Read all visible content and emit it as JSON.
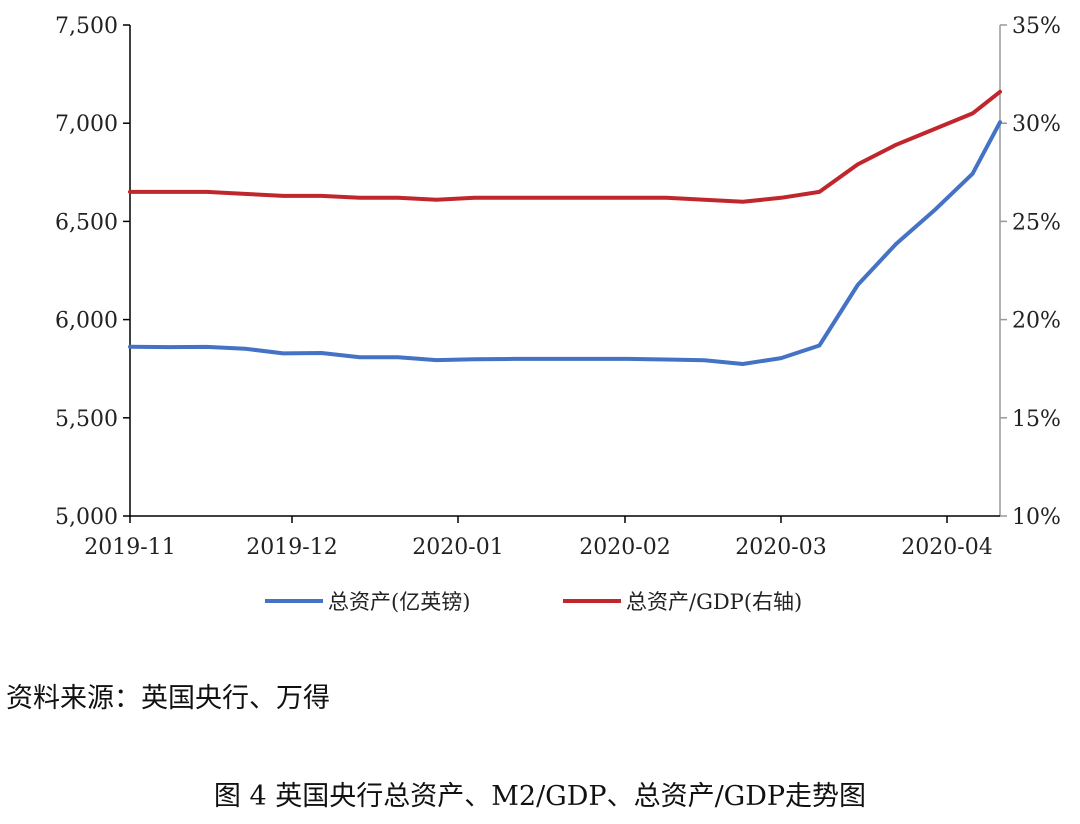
{
  "chart_data": {
    "type": "line",
    "x_tick_labels": [
      "2019-11",
      "2019-12",
      "2020-01",
      "2020-02",
      "2020-03",
      "2020-04"
    ],
    "left_axis": {
      "ylim": [
        5000,
        7500
      ],
      "ticks": [
        5000,
        5500,
        6000,
        6500,
        7000,
        7500
      ],
      "tick_labels": [
        "5,000",
        "5,500",
        "6,000",
        "6,500",
        "7,000",
        "7,500"
      ]
    },
    "right_axis": {
      "ylim": [
        10,
        35
      ],
      "ticks": [
        10,
        15,
        20,
        25,
        30,
        35
      ],
      "tick_labels": [
        "10%",
        "15%",
        "20%",
        "25%",
        "30%",
        "35%"
      ]
    },
    "x": [
      "2019-11-01",
      "2019-11-08",
      "2019-11-15",
      "2019-11-22",
      "2019-11-29",
      "2019-12-06",
      "2019-12-13",
      "2019-12-20",
      "2019-12-27",
      "2020-01-03",
      "2020-01-10",
      "2020-01-17",
      "2020-01-24",
      "2020-01-31",
      "2020-02-07",
      "2020-02-14",
      "2020-02-21",
      "2020-02-28",
      "2020-03-06",
      "2020-03-13",
      "2020-03-20",
      "2020-03-27",
      "2020-04-03",
      "2020-04-08"
    ],
    "series": [
      {
        "name": "总资产(亿英镑)",
        "axis": "left",
        "color": "#4472c4",
        "values": [
          5862,
          5860,
          5861,
          5852,
          5828,
          5830,
          5808,
          5808,
          5794,
          5798,
          5800,
          5800,
          5800,
          5800,
          5797,
          5793,
          5774,
          5804,
          5868,
          6176,
          6385,
          6556,
          6743,
          7005
        ]
      },
      {
        "name": "总资产/GDP(右轴)",
        "axis": "right",
        "color": "#c0272d",
        "values": [
          26.5,
          26.5,
          26.5,
          26.4,
          26.3,
          26.3,
          26.2,
          26.2,
          26.1,
          26.2,
          26.2,
          26.2,
          26.2,
          26.2,
          26.2,
          26.1,
          26.0,
          26.2,
          26.5,
          27.9,
          28.9,
          29.7,
          30.5,
          31.6
        ]
      }
    ],
    "legend_position": "bottom",
    "grid": false
  },
  "source_text": "资料来源：英国央行、万得",
  "caption": "图 4  英国央行总资产、M2/GDP、总资产/GDP走势图"
}
